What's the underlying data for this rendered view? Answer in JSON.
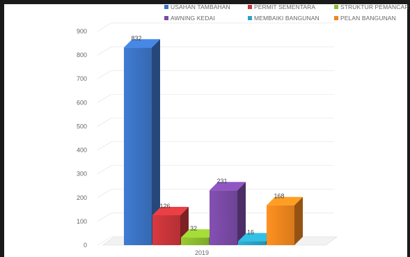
{
  "chart_data": {
    "type": "bar",
    "categories": [
      "2019"
    ],
    "series": [
      {
        "name": "USAHAN TAMBAHAN",
        "values": [
          832
        ],
        "color": "#3b73c4"
      },
      {
        "name": "PERMIT SEMENTARA",
        "values": [
          126
        ],
        "color": "#c8353a"
      },
      {
        "name": "STRUKTUR PEMANCAR",
        "values": [
          32
        ],
        "color": "#8cbc2e"
      },
      {
        "name": "AWNING KEDAI",
        "values": [
          231
        ],
        "color": "#7a4aa6"
      },
      {
        "name": "MEMBAIKI BANGUNAN",
        "values": [
          16
        ],
        "color": "#2ba3c4"
      },
      {
        "name": "PELAN BANGUNAN",
        "values": [
          168
        ],
        "color": "#f0861e"
      }
    ],
    "data_labels": [
      "832",
      "126",
      "32",
      "231",
      "16",
      "168"
    ],
    "ylim": [
      0,
      900
    ],
    "yticks": [
      "0",
      "100",
      "200",
      "300",
      "400",
      "500",
      "600",
      "700",
      "800",
      "900"
    ],
    "grid": true,
    "legend_position": "top-right",
    "style": "3d-column"
  }
}
